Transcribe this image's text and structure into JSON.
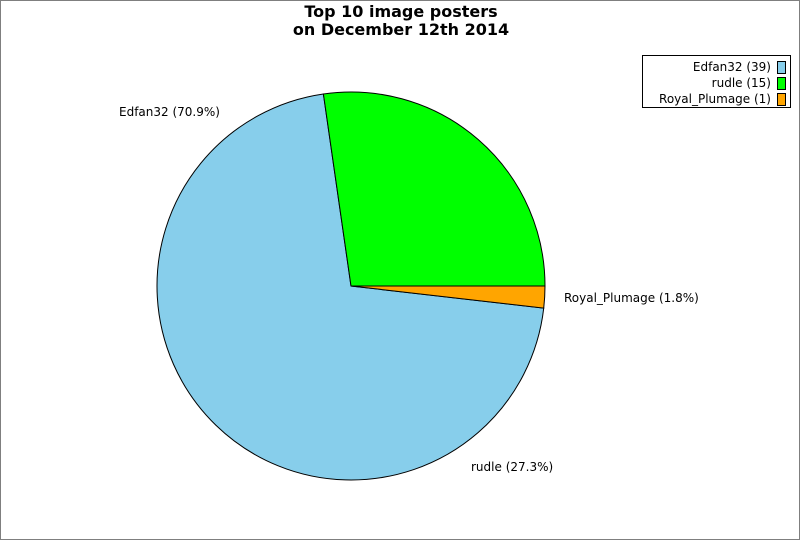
{
  "chart_data": {
    "type": "pie",
    "title": [
      "Top 10 image posters",
      "on December 12th 2014"
    ],
    "series": [
      {
        "name": "Edfan32",
        "value": 39,
        "percent": 70.9,
        "color": "#87CEEB"
      },
      {
        "name": "rudle",
        "value": 15,
        "percent": 27.3,
        "color": "#00FF00"
      },
      {
        "name": "Royal_Plumage",
        "value": 1,
        "percent": 1.8,
        "color": "#FFA500"
      }
    ],
    "legend": {
      "placement": "top-right",
      "entries": [
        "Edfan32 (39)",
        "rudle (15)",
        "Royal_Plumage (1)"
      ]
    },
    "slice_labels": [
      "Edfan32 (70.9%)",
      "rudle (27.3%)",
      "Royal_Plumage (1.8%)"
    ]
  }
}
